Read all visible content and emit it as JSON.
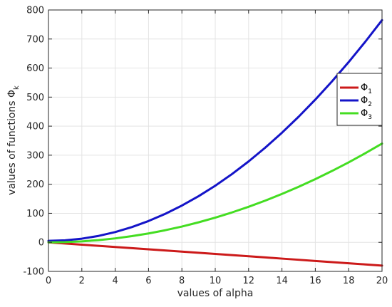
{
  "chart_data": {
    "type": "line",
    "title": "",
    "xlabel": "values of alpha",
    "ylabel": "values of functions Φ",
    "ylabel_subscript": "k",
    "xlim": [
      0,
      20
    ],
    "ylim": [
      -100,
      800
    ],
    "xticks": [
      0,
      2,
      4,
      6,
      8,
      10,
      12,
      14,
      16,
      18,
      20
    ],
    "yticks": [
      -100,
      0,
      100,
      200,
      300,
      400,
      500,
      600,
      700,
      800
    ],
    "grid": true,
    "legend_position": "right",
    "x": [
      0,
      1,
      2,
      3,
      4,
      5,
      6,
      7,
      8,
      9,
      10,
      11,
      12,
      13,
      14,
      15,
      16,
      17,
      18,
      19,
      20
    ],
    "series": [
      {
        "name": "Φ",
        "subscript": "1",
        "color": "#cc1a1a",
        "values": [
          0,
          -4,
          -8,
          -12,
          -16,
          -20,
          -24,
          -28,
          -32,
          -36,
          -40,
          -44,
          -48,
          -52,
          -56,
          -60,
          -64,
          -68,
          -72,
          -76,
          -80
        ]
      },
      {
        "name": "Φ",
        "subscript": "2",
        "color": "#1414c8",
        "values": [
          5,
          6.9,
          12.6,
          22.1,
          35.4,
          52.5,
          73.4,
          98.1,
          126.6,
          158.9,
          195,
          234.9,
          278.6,
          326.1,
          377.4,
          432.5,
          491.4,
          554.1,
          620.6,
          690.9,
          765
        ]
      },
      {
        "name": "Φ",
        "subscript": "3",
        "color": "#44dd22",
        "values": [
          0,
          0.9,
          3.4,
          7.7,
          13.6,
          21.3,
          30.6,
          41.7,
          54.4,
          68.9,
          85,
          102.9,
          122.4,
          143.7,
          166.6,
          191.3,
          217.6,
          245.7,
          275.4,
          306.9,
          340
        ]
      }
    ]
  }
}
